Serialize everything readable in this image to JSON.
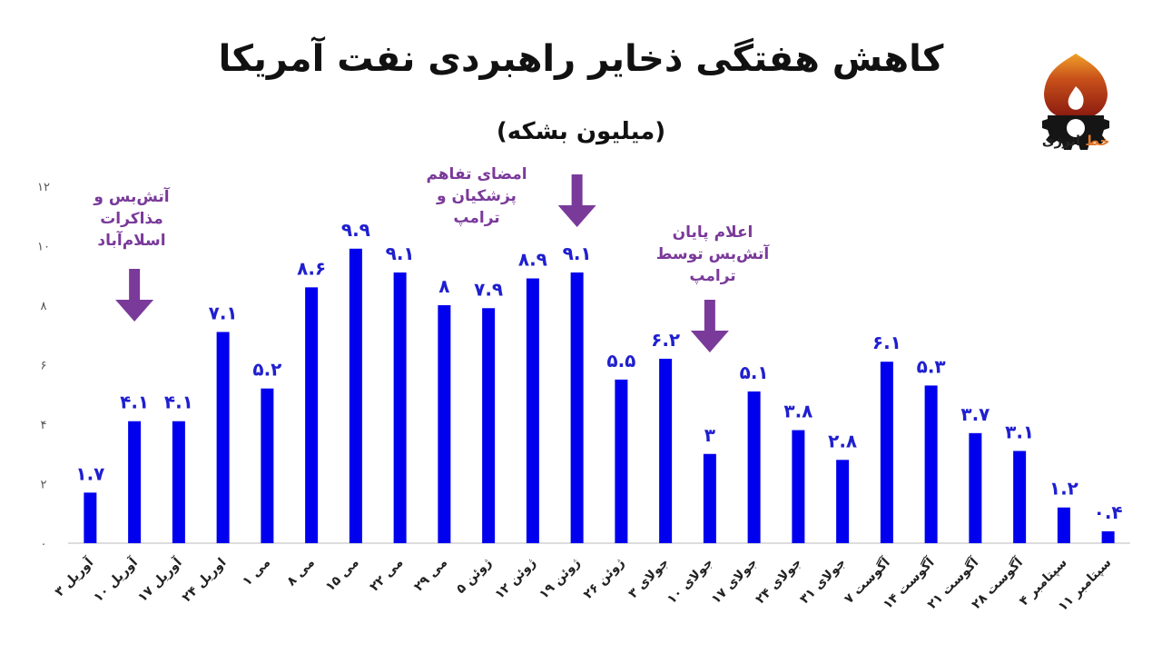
{
  "chart_data": {
    "type": "bar",
    "title": "کاهش هفتگی ذخایر راهبردی نفت آمریکا",
    "subtitle": "(میلیون بشکه)",
    "categories": [
      "آوریل ۳",
      "آوریل ۱۰",
      "آوریل ۱۷",
      "اوریل ۲۴",
      "می ۱",
      "می ۸",
      "می ۱۵",
      "می ۲۲",
      "می ۲۹",
      "ژوئن ۵",
      "ژوئن ۱۲",
      "ژوئن ۱۹",
      "ژوئن ۲۶",
      "جولای ۳",
      "جولای ۱۰",
      "جولای ۱۷",
      "جولای ۲۴",
      "جولای ۳۱",
      "آگوست ۷",
      "آگوست ۱۴",
      "آگوست ۲۱",
      "آگوست ۲۸",
      "سپتامبر ۴",
      "سپتامبر ۱۱"
    ],
    "values": [
      1.7,
      4.1,
      4.1,
      7.1,
      5.2,
      8.6,
      9.9,
      9.1,
      8,
      7.9,
      8.9,
      9.1,
      5.5,
      6.2,
      3,
      5.1,
      3.8,
      2.8,
      6.1,
      5.3,
      3.7,
      3.1,
      1.2,
      0.4
    ],
    "value_labels": [
      "۱.۷",
      "۴.۱",
      "۴.۱",
      "۷.۱",
      "۵.۲",
      "۸.۶",
      "۹.۹",
      "۹.۱",
      "۸",
      "۷.۹",
      "۸.۹",
      "۹.۱",
      "۵.۵",
      "۶.۲",
      "۳",
      "۵.۱",
      "۳.۸",
      "۲.۸",
      "۶.۱",
      "۵.۳",
      "۳.۷",
      "۳.۱",
      "۱.۲",
      "۰.۴"
    ],
    "yticks": [
      0,
      2,
      4,
      6,
      8,
      10,
      12
    ],
    "ytick_labels": [
      "۰",
      "۲",
      "۴",
      "۶",
      "۸",
      "۱۰",
      "۱۲"
    ],
    "ylim": [
      0,
      12
    ],
    "grid": false,
    "colors": {
      "bar": "#0000ee",
      "value_label": "#1f1fd0",
      "annotation": "#7a3a9a"
    },
    "annotations": [
      {
        "category_index": 1,
        "lines": [
          "آتش‌بس و",
          "مذاکرات",
          "اسلام‌آباد"
        ]
      },
      {
        "category_index": 11,
        "lines": [
          "امضای تفاهم",
          "پزشکیان و ترامپ"
        ]
      },
      {
        "category_index": 14,
        "lines": [
          "اعلام پایان",
          "آتش‌بس توسط",
          "ترامپ"
        ]
      }
    ]
  },
  "logo": {
    "text_accent": "خط",
    "text_main": " انرژی",
    "icon": "flame-gear-icon"
  }
}
